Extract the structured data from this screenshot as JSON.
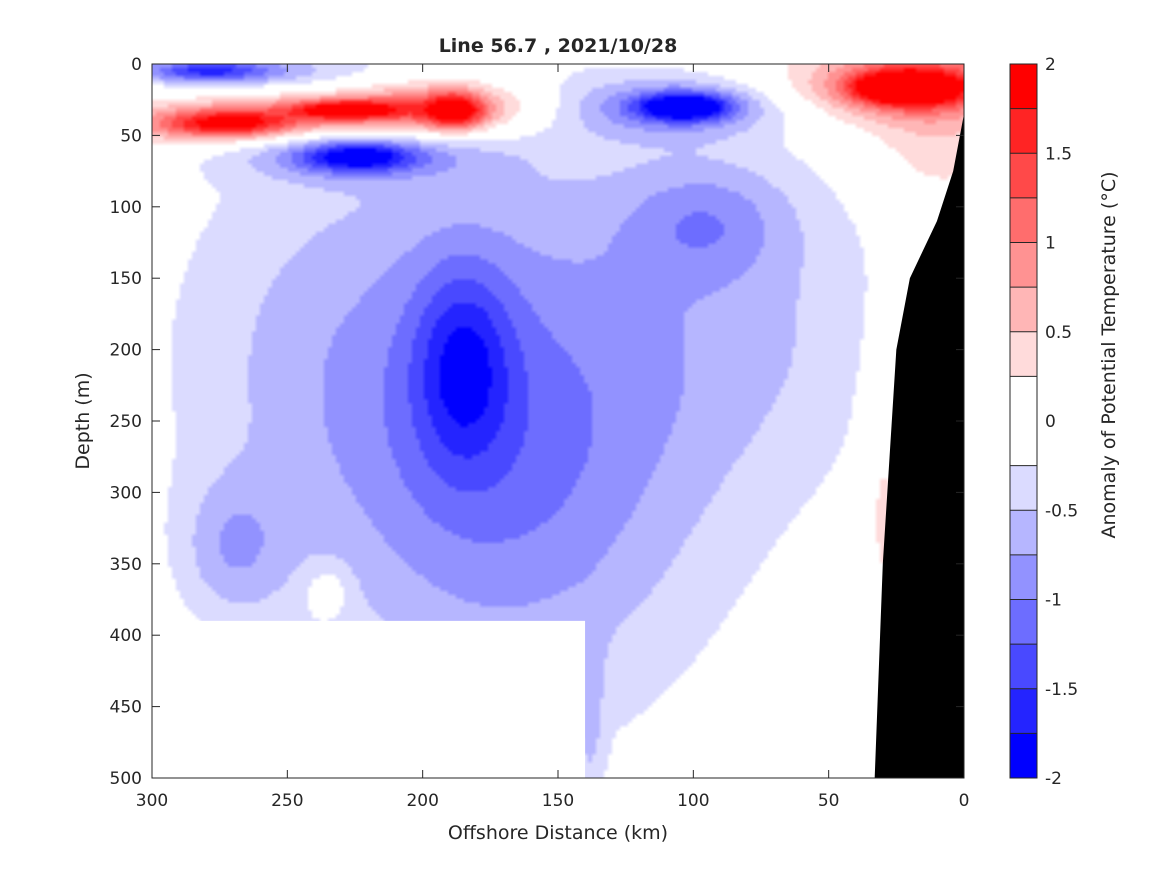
{
  "chart_data": {
    "type": "heatmap",
    "subtype": "filled-contour section",
    "title": "Line 56.7 , 2021/10/28",
    "xlabel": "Offshore Distance (km)",
    "ylabel": "Depth (m)",
    "colorbar_label": "Anomaly of Potential Temperature (°C)",
    "x_axis": {
      "range": [
        300,
        0
      ],
      "reversed": true,
      "ticks": [
        300,
        250,
        200,
        150,
        100,
        50,
        0
      ]
    },
    "y_axis": {
      "range": [
        0,
        500
      ],
      "reversed": true,
      "ticks": [
        0,
        50,
        100,
        150,
        200,
        250,
        300,
        350,
        400,
        450,
        500
      ]
    },
    "colorbar": {
      "range": [
        -2,
        2
      ],
      "ticks": [
        2,
        1.5,
        1,
        0.5,
        0,
        -0.5,
        -1,
        -1.5,
        -2
      ],
      "levels": [
        -2,
        -1.75,
        -1.5,
        -1.25,
        -1,
        -0.75,
        -0.5,
        -0.25,
        0.25,
        0.5,
        0.75,
        1,
        1.25,
        1.5,
        1.75,
        2
      ],
      "colors": [
        "#0000ff",
        "#2424ff",
        "#4949ff",
        "#6d6dff",
        "#9292ff",
        "#b6b6ff",
        "#dbdbff",
        "#ffffff",
        "#ffdbdb",
        "#ffb6b6",
        "#ff9292",
        "#ff6d6d",
        "#ff4949",
        "#ff2424",
        "#ff0000"
      ]
    },
    "grid": false,
    "bathymetry_color": "#000000",
    "blobs": [
      {
        "x": 270,
        "y": 5,
        "rx": 45,
        "ry": 12,
        "v": -0.6
      },
      {
        "x": 280,
        "y": 5,
        "rx": 22,
        "ry": 7,
        "v": -1.0
      },
      {
        "x": 275,
        "y": 42,
        "rx": 60,
        "ry": 16,
        "v": 0.8
      },
      {
        "x": 272,
        "y": 42,
        "rx": 22,
        "ry": 9,
        "v": 1.3
      },
      {
        "x": 228,
        "y": 32,
        "rx": 50,
        "ry": 14,
        "v": 0.8
      },
      {
        "x": 228,
        "y": 32,
        "rx": 18,
        "ry": 6,
        "v": 1.4
      },
      {
        "x": 192,
        "y": 30,
        "rx": 35,
        "ry": 22,
        "v": 0.9
      },
      {
        "x": 188,
        "y": 33,
        "rx": 10,
        "ry": 12,
        "v": 1.5
      },
      {
        "x": 225,
        "y": 63,
        "rx": 45,
        "ry": 18,
        "v": -0.7
      },
      {
        "x": 224,
        "y": 65,
        "rx": 20,
        "ry": 10,
        "v": -1.3
      },
      {
        "x": 105,
        "y": 30,
        "rx": 40,
        "ry": 20,
        "v": -0.9
      },
      {
        "x": 103,
        "y": 30,
        "rx": 16,
        "ry": 9,
        "v": -1.7
      },
      {
        "x": 25,
        "y": 15,
        "rx": 55,
        "ry": 30,
        "v": 0.7
      },
      {
        "x": 18,
        "y": 15,
        "rx": 28,
        "ry": 18,
        "v": 1.3
      },
      {
        "x": 22,
        "y": 17,
        "rx": 16,
        "ry": 9,
        "v": 1.8
      },
      {
        "x": 10,
        "y": 60,
        "rx": 25,
        "ry": 40,
        "v": 0.4
      },
      {
        "x": 160,
        "y": 230,
        "rx": 90,
        "ry": 230,
        "v": -0.45
      },
      {
        "x": 170,
        "y": 280,
        "rx": 65,
        "ry": 160,
        "v": -0.65
      },
      {
        "x": 185,
        "y": 210,
        "rx": 18,
        "ry": 70,
        "v": -0.9
      },
      {
        "x": 95,
        "y": 110,
        "rx": 30,
        "ry": 40,
        "v": -0.55
      },
      {
        "x": 270,
        "y": 340,
        "rx": 20,
        "ry": 50,
        "v": -0.55
      },
      {
        "x": 245,
        "y": 200,
        "rx": 60,
        "ry": 150,
        "v": -0.35
      },
      {
        "x": 75,
        "y": 180,
        "rx": 60,
        "ry": 120,
        "v": -0.35
      },
      {
        "x": 30,
        "y": 300,
        "rx": 8,
        "ry": 110,
        "v": 0.4
      },
      {
        "x": 235,
        "y": 370,
        "rx": 8,
        "ry": 18,
        "v": 0.4
      },
      {
        "x": 138,
        "y": 460,
        "rx": 5,
        "ry": 60,
        "v": -0.35
      }
    ],
    "bathymetry_profile": [
      {
        "x": 33,
        "y": 500
      },
      {
        "x": 30,
        "y": 350
      },
      {
        "x": 25,
        "y": 200
      },
      {
        "x": 20,
        "y": 150
      },
      {
        "x": 10,
        "y": 110
      },
      {
        "x": 4,
        "y": 75
      },
      {
        "x": 0,
        "y": 35
      },
      {
        "x": 0,
        "y": 500
      }
    ],
    "no_data_region": [
      {
        "x": 300,
        "y": 390
      },
      {
        "x": 140,
        "y": 390
      },
      {
        "x": 140,
        "y": 500
      },
      {
        "x": 300,
        "y": 500
      }
    ]
  }
}
